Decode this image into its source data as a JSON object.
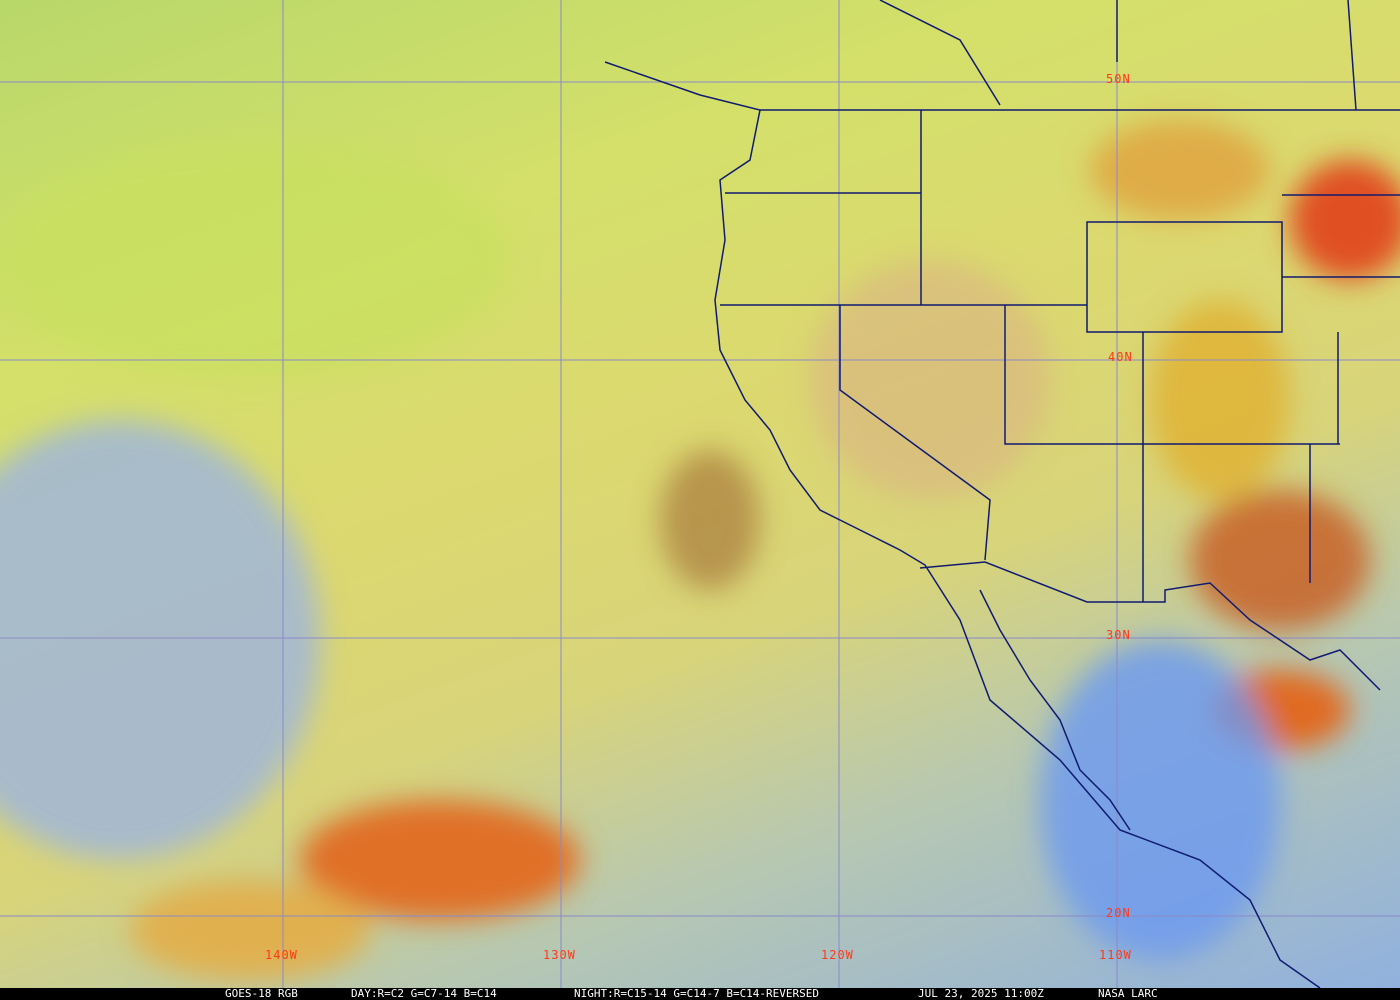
{
  "map": {
    "caption": {
      "satellite": "GOES-18 RGB",
      "day": "DAY:R=C2 G=C7-14 B=C14",
      "night": "NIGHT:R=C15-14 G=C14-7 B=C14-REVERSED",
      "datetime": "JUL 23, 2025 11:00Z",
      "source": "NASA LARC"
    },
    "latitude_labels": [
      "50N",
      "40N",
      "30N",
      "20N"
    ],
    "longitude_labels": [
      "140W",
      "130W",
      "120W",
      "110W"
    ],
    "colors": {
      "grid": "#8a8ac8",
      "borders": "#101a70",
      "labels": "#ff3a1a",
      "ocean_clear": "#8fb0e8",
      "cloud_high": "#e06020"
    }
  }
}
